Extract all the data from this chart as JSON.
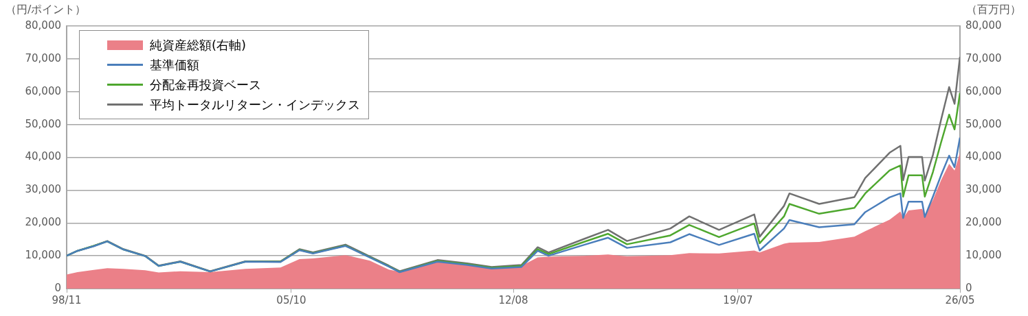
{
  "chart_data": {
    "type": "line",
    "ylabel": "（円/ポイント）",
    "y2label": "（百万円）",
    "x": [
      "1998-11",
      "1999-03",
      "1999-09",
      "2000-02",
      "2000-08",
      "2001-04",
      "2001-09",
      "2002-05",
      "2003-04",
      "2004-05",
      "2005-06",
      "2006-01",
      "2006-06",
      "2007-06",
      "2008-03",
      "2008-10",
      "2009-02",
      "2010-04",
      "2011-03",
      "2011-12",
      "2012-11",
      "2013-05",
      "2013-09",
      "2014-10",
      "2015-07",
      "2016-02",
      "2017-06",
      "2018-01",
      "2018-12",
      "2020-01",
      "2020-03",
      "2020-12",
      "2021-02",
      "2022-01",
      "2023-02",
      "2023-06",
      "2024-03",
      "2024-07",
      "2024-08",
      "2024-10",
      "2025-03",
      "2025-04",
      "2025-07",
      "2025-10",
      "2026-01",
      "2026-03",
      "2026-05"
    ],
    "series": [
      {
        "name": "純資産総額(右軸)",
        "type": "area",
        "axis": "y2",
        "color": "#eb8088",
        "values": [
          4300,
          5000,
          5700,
          6200,
          6000,
          5600,
          4900,
          5300,
          5000,
          6000,
          6400,
          9000,
          9200,
          10200,
          8500,
          5800,
          5100,
          8000,
          7500,
          6300,
          6900,
          9500,
          9700,
          10000,
          10400,
          9800,
          10200,
          10800,
          10700,
          11600,
          11000,
          13700,
          14000,
          14200,
          15800,
          17500,
          21000,
          23500,
          21500,
          23800,
          24300,
          22500,
          27000,
          33000,
          38000,
          36000,
          41400
        ]
      },
      {
        "name": "基準価額",
        "color": "#4a7ebb",
        "values": [
          10000,
          11500,
          12900,
          14400,
          11900,
          9900,
          6900,
          8200,
          5200,
          8200,
          8100,
          11700,
          10700,
          13000,
          9500,
          6700,
          5000,
          8200,
          7200,
          6100,
          6600,
          11500,
          10000,
          13300,
          15500,
          12400,
          14100,
          16600,
          13300,
          16700,
          11600,
          18300,
          20900,
          18700,
          19600,
          23300,
          27800,
          29000,
          21500,
          26500,
          26500,
          21800,
          28000,
          34500,
          40500,
          37000,
          46000
        ]
      },
      {
        "name": "分配金再投資ベース",
        "color": "#4ea72e",
        "values": [
          10000,
          11500,
          13000,
          14400,
          11900,
          9900,
          6900,
          8200,
          5200,
          8200,
          8200,
          11800,
          10800,
          13100,
          9600,
          6800,
          5100,
          8400,
          7400,
          6300,
          6900,
          12000,
          10500,
          14200,
          16700,
          13500,
          16200,
          19400,
          15700,
          19800,
          13800,
          22000,
          25800,
          22800,
          24600,
          29000,
          36000,
          37500,
          28000,
          34500,
          34500,
          28000,
          35500,
          44500,
          53000,
          48500,
          59600
        ]
      },
      {
        "name": "平均トータルリターン・インデックス",
        "color": "#707070",
        "values": [
          10000,
          11500,
          13000,
          14500,
          12000,
          10000,
          7000,
          8300,
          5300,
          8300,
          8300,
          12000,
          11000,
          13400,
          9800,
          7000,
          5300,
          8700,
          7700,
          6600,
          7200,
          12600,
          11000,
          15100,
          17900,
          14500,
          18300,
          22000,
          17900,
          22600,
          15800,
          25200,
          29000,
          25800,
          27900,
          33700,
          41400,
          43500,
          33000,
          40100,
          40100,
          32900,
          40700,
          51400,
          61400,
          56300,
          70600
        ]
      }
    ],
    "xlim": [
      "1998-11",
      "2026-05"
    ],
    "xticks": [
      {
        "value": "1998-11",
        "label": "98/11"
      },
      {
        "value": "2005-10",
        "label": "05/10"
      },
      {
        "value": "2012-08",
        "label": "12/08"
      },
      {
        "value": "2019-07",
        "label": "19/07"
      },
      {
        "value": "2026-05",
        "label": "26/05"
      }
    ],
    "ylim": [
      0,
      80000
    ],
    "yticks": [
      0,
      {
        "value": 10000,
        "label": "10,000"
      },
      {
        "value": 20000,
        "label": "20,000"
      },
      {
        "value": 30000,
        "label": "30,000"
      },
      {
        "value": 40000,
        "label": "40,000"
      },
      {
        "value": 50000,
        "label": "50,000"
      },
      {
        "value": 60000,
        "label": "60,000"
      },
      {
        "value": 70000,
        "label": "70,000"
      },
      {
        "value": 80000,
        "label": "80,000"
      }
    ],
    "y2lim": [
      0,
      80000
    ],
    "y2ticks": [
      0,
      {
        "value": 10000,
        "label": "10,000"
      },
      {
        "value": 20000,
        "label": "20,000"
      },
      {
        "value": 30000,
        "label": "30,000"
      },
      {
        "value": 40000,
        "label": "40,000"
      },
      {
        "value": 50000,
        "label": "50,000"
      },
      {
        "value": 60000,
        "label": "60,000"
      },
      {
        "value": 70000,
        "label": "70,000"
      },
      {
        "value": 80000,
        "label": "80,000"
      }
    ],
    "grid": "y",
    "legend": "top left"
  }
}
